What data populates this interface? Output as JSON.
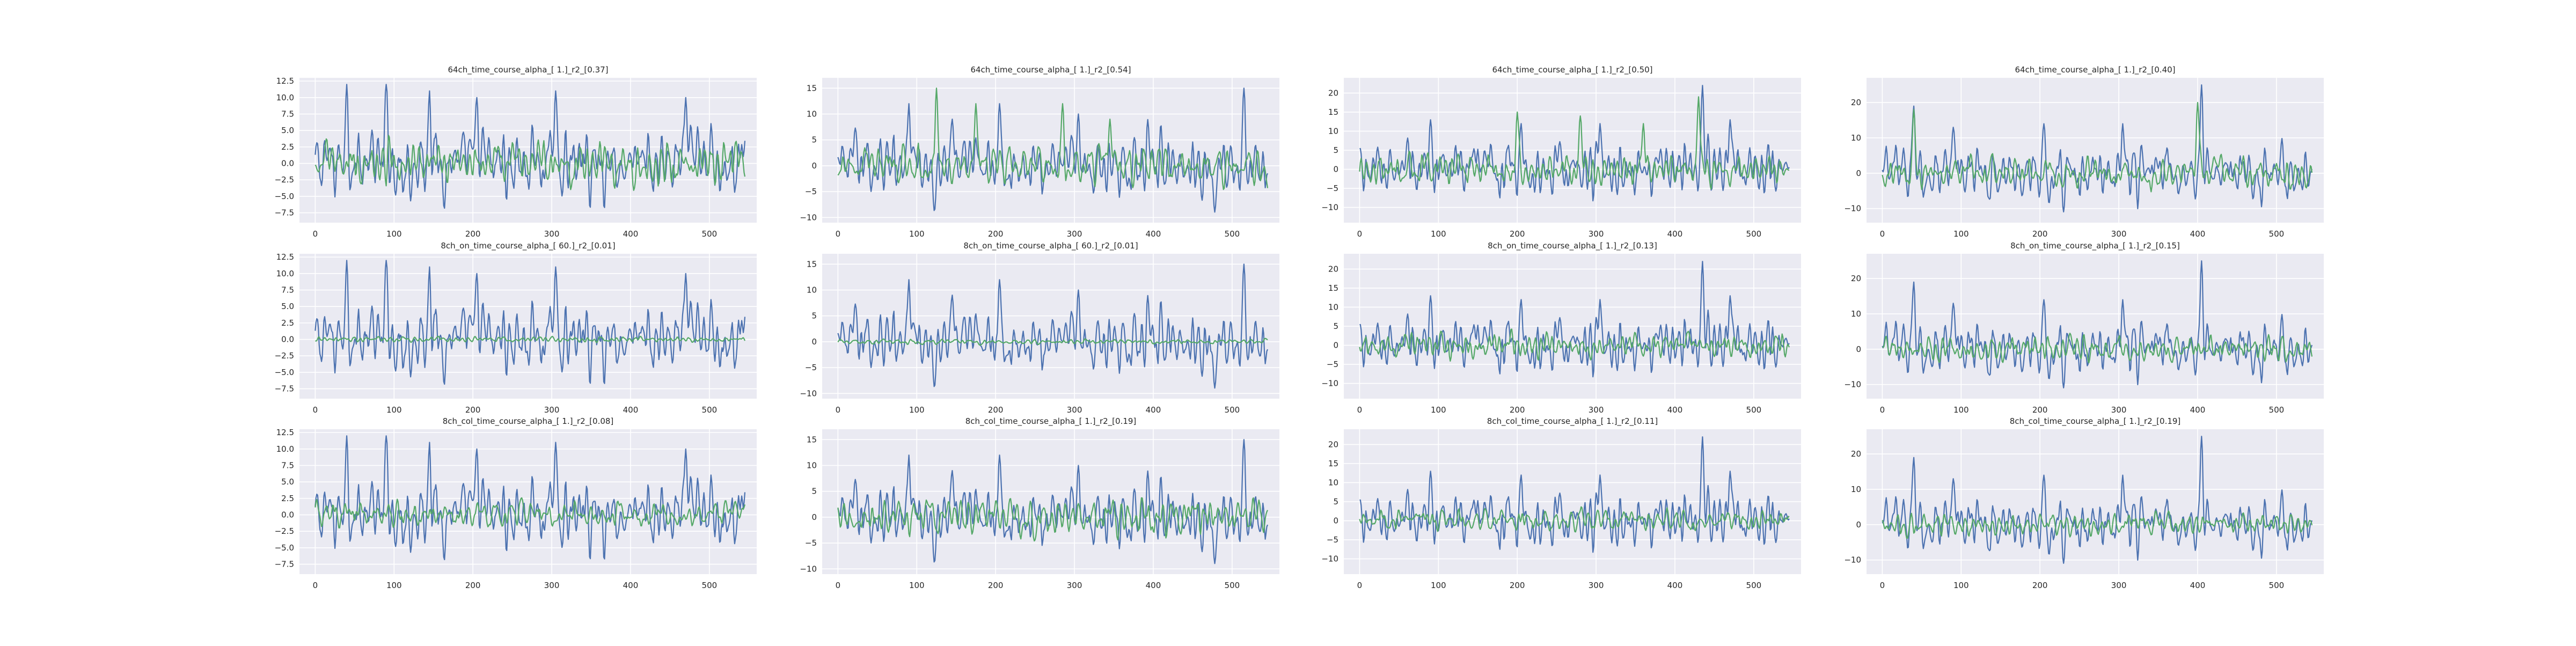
{
  "figure": {
    "colors": {
      "background": "#eaeaf2",
      "grid": "#ffffff",
      "series_blue": "#4c72b0",
      "series_green": "#55a868",
      "text": "#262626"
    }
  },
  "chart_data": [
    {
      "type": "line",
      "title": "64ch_time_course_alpha_[ 1.]_r2_[0.37]",
      "xlim": [
        -20,
        560
      ],
      "ylim": [
        -9,
        13
      ],
      "xticks": [
        0,
        100,
        200,
        300,
        400,
        500
      ],
      "yticks": [
        -7.5,
        -5.0,
        -2.5,
        0.0,
        2.5,
        5.0,
        7.5,
        10.0,
        12.5
      ],
      "ytick_labels": [
        "−7.5",
        "−5.0",
        "−2.5",
        "0.0",
        "2.5",
        "5.0",
        "7.5",
        "10.0",
        "12.5"
      ],
      "series": [
        {
          "color": "#4c72b0",
          "amplitude": 4.5,
          "peaks": [
            [
              40,
              12
            ],
            [
              90,
              12
            ],
            [
              145,
              11
            ],
            [
              205,
              10
            ],
            [
              305,
              11
            ],
            [
              470,
              10
            ]
          ]
        },
        {
          "color": "#55a868",
          "amplitude": 2.8,
          "peaks": []
        }
      ]
    },
    {
      "type": "line",
      "title": "64ch_time_course_alpha_[ 1.]_r2_[0.54]",
      "xlim": [
        -20,
        560
      ],
      "ylim": [
        -11,
        17
      ],
      "xticks": [
        0,
        100,
        200,
        300,
        400,
        500
      ],
      "yticks": [
        -10,
        -5,
        0,
        5,
        10,
        15
      ],
      "ytick_labels": [
        "−10",
        "−5",
        "0",
        "5",
        "10",
        "15"
      ],
      "series": [
        {
          "color": "#4c72b0",
          "amplitude": 5.0,
          "peaks": [
            [
              90,
              12
            ],
            [
              145,
              9
            ],
            [
              205,
              12
            ],
            [
              305,
              10
            ],
            [
              515,
              15
            ]
          ]
        },
        {
          "color": "#55a868",
          "amplitude": 3.2,
          "peaks": [
            [
              125,
              15
            ],
            [
              175,
              12
            ],
            [
              285,
              12
            ],
            [
              345,
              9
            ]
          ]
        }
      ]
    },
    {
      "type": "line",
      "title": "64ch_time_course_alpha_[ 1.]_r2_[0.50]",
      "xlim": [
        -20,
        560
      ],
      "ylim": [
        -14,
        24
      ],
      "xticks": [
        0,
        100,
        200,
        300,
        400,
        500
      ],
      "yticks": [
        -10,
        -5,
        0,
        5,
        10,
        15,
        20
      ],
      "ytick_labels": [
        "−10",
        "−5",
        "0",
        "5",
        "10",
        "15",
        "20"
      ],
      "series": [
        {
          "color": "#4c72b0",
          "amplitude": 6.0,
          "peaks": [
            [
              90,
              13
            ],
            [
              205,
              12
            ],
            [
              305,
              12
            ],
            [
              435,
              22
            ],
            [
              470,
              13
            ]
          ]
        },
        {
          "color": "#55a868",
          "amplitude": 3.5,
          "peaks": [
            [
              200,
              15
            ],
            [
              280,
              14
            ],
            [
              360,
              12
            ],
            [
              430,
              19
            ]
          ]
        }
      ]
    },
    {
      "type": "line",
      "title": "64ch_time_course_alpha_[ 1.]_r2_[0.40]",
      "xlim": [
        -20,
        560
      ],
      "ylim": [
        -14,
        27
      ],
      "xticks": [
        0,
        100,
        200,
        300,
        400,
        500
      ],
      "yticks": [
        -10,
        0,
        10,
        20
      ],
      "ytick_labels": [
        "−10",
        "0",
        "10",
        "20"
      ],
      "series": [
        {
          "color": "#4c72b0",
          "amplitude": 6.5,
          "peaks": [
            [
              40,
              19
            ],
            [
              90,
              13
            ],
            [
              205,
              14
            ],
            [
              305,
              14
            ],
            [
              405,
              25
            ]
          ]
        },
        {
          "color": "#55a868",
          "amplitude": 4.0,
          "peaks": [
            [
              40,
              18
            ],
            [
              400,
              20
            ]
          ]
        }
      ]
    },
    {
      "type": "line",
      "title": "8ch_on_time_course_alpha_[ 60.]_r2_[0.01]",
      "xlim": [
        -20,
        560
      ],
      "ylim": [
        -9,
        13
      ],
      "xticks": [
        0,
        100,
        200,
        300,
        400,
        500
      ],
      "yticks": [
        -7.5,
        -5.0,
        -2.5,
        0.0,
        2.5,
        5.0,
        7.5,
        10.0,
        12.5
      ],
      "ytick_labels": [
        "−7.5",
        "−5.0",
        "−2.5",
        "0.0",
        "2.5",
        "5.0",
        "7.5",
        "10.0",
        "12.5"
      ],
      "series": [
        {
          "color": "#4c72b0",
          "amplitude": 4.5,
          "peaks": [
            [
              40,
              12
            ],
            [
              90,
              12
            ],
            [
              145,
              11
            ],
            [
              205,
              10
            ],
            [
              305,
              11
            ],
            [
              470,
              10
            ]
          ]
        },
        {
          "color": "#55a868",
          "amplitude": 0.35,
          "peaks": []
        }
      ]
    },
    {
      "type": "line",
      "title": "8ch_on_time_course_alpha_[ 60.]_r2_[0.01]",
      "xlim": [
        -20,
        560
      ],
      "ylim": [
        -11,
        17
      ],
      "xticks": [
        0,
        100,
        200,
        300,
        400,
        500
      ],
      "yticks": [
        -10,
        -5,
        0,
        5,
        10,
        15
      ],
      "ytick_labels": [
        "−10",
        "−5",
        "0",
        "5",
        "10",
        "15"
      ],
      "series": [
        {
          "color": "#4c72b0",
          "amplitude": 5.0,
          "peaks": [
            [
              90,
              12
            ],
            [
              145,
              9
            ],
            [
              205,
              12
            ],
            [
              305,
              10
            ],
            [
              515,
              15
            ]
          ]
        },
        {
          "color": "#55a868",
          "amplitude": 0.4,
          "peaks": []
        }
      ]
    },
    {
      "type": "line",
      "title": "8ch_on_time_course_alpha_[ 1.]_r2_[0.13]",
      "xlim": [
        -20,
        560
      ],
      "ylim": [
        -14,
        24
      ],
      "xticks": [
        0,
        100,
        200,
        300,
        400,
        500
      ],
      "yticks": [
        -10,
        -5,
        0,
        5,
        10,
        15,
        20
      ],
      "ytick_labels": [
        "−10",
        "−5",
        "0",
        "5",
        "10",
        "15",
        "20"
      ],
      "series": [
        {
          "color": "#4c72b0",
          "amplitude": 6.0,
          "peaks": [
            [
              90,
              13
            ],
            [
              205,
              12
            ],
            [
              305,
              12
            ],
            [
              435,
              22
            ],
            [
              470,
              13
            ]
          ]
        },
        {
          "color": "#55a868",
          "amplitude": 2.8,
          "peaks": []
        }
      ]
    },
    {
      "type": "line",
      "title": "8ch_on_time_course_alpha_[ 1.]_r2_[0.15]",
      "xlim": [
        -20,
        560
      ],
      "ylim": [
        -14,
        27
      ],
      "xticks": [
        0,
        100,
        200,
        300,
        400,
        500
      ],
      "yticks": [
        -10,
        0,
        10,
        20
      ],
      "ytick_labels": [
        "−10",
        "0",
        "10",
        "20"
      ],
      "series": [
        {
          "color": "#4c72b0",
          "amplitude": 6.5,
          "peaks": [
            [
              40,
              19
            ],
            [
              90,
              13
            ],
            [
              205,
              14
            ],
            [
              305,
              14
            ],
            [
              405,
              25
            ]
          ]
        },
        {
          "color": "#55a868",
          "amplitude": 3.0,
          "peaks": []
        }
      ]
    },
    {
      "type": "line",
      "title": "8ch_col_time_course_alpha_[ 1.]_r2_[0.08]",
      "xlim": [
        -20,
        560
      ],
      "ylim": [
        -9,
        13
      ],
      "xticks": [
        0,
        100,
        200,
        300,
        400,
        500
      ],
      "yticks": [
        -7.5,
        -5.0,
        -2.5,
        0.0,
        2.5,
        5.0,
        7.5,
        10.0,
        12.5
      ],
      "ytick_labels": [
        "−7.5",
        "−5.0",
        "−2.5",
        "0.0",
        "2.5",
        "5.0",
        "7.5",
        "10.0",
        "12.5"
      ],
      "series": [
        {
          "color": "#4c72b0",
          "amplitude": 4.5,
          "peaks": [
            [
              40,
              12
            ],
            [
              90,
              12
            ],
            [
              145,
              11
            ],
            [
              205,
              10
            ],
            [
              305,
              11
            ],
            [
              470,
              10
            ]
          ]
        },
        {
          "color": "#55a868",
          "amplitude": 1.8,
          "peaks": []
        }
      ]
    },
    {
      "type": "line",
      "title": "8ch_col_time_course_alpha_[ 1.]_r2_[0.19]",
      "xlim": [
        -20,
        560
      ],
      "ylim": [
        -11,
        17
      ],
      "xticks": [
        0,
        100,
        200,
        300,
        400,
        500
      ],
      "yticks": [
        -10,
        -5,
        0,
        5,
        10,
        15
      ],
      "ytick_labels": [
        "−10",
        "−5",
        "0",
        "5",
        "10",
        "15"
      ],
      "series": [
        {
          "color": "#4c72b0",
          "amplitude": 5.0,
          "peaks": [
            [
              90,
              12
            ],
            [
              145,
              9
            ],
            [
              205,
              12
            ],
            [
              305,
              10
            ],
            [
              515,
              15
            ]
          ]
        },
        {
          "color": "#55a868",
          "amplitude": 3.0,
          "peaks": []
        }
      ]
    },
    {
      "type": "line",
      "title": "8ch_col_time_course_alpha_[ 1.]_r2_[0.11]",
      "xlim": [
        -20,
        560
      ],
      "ylim": [
        -14,
        24
      ],
      "xticks": [
        0,
        100,
        200,
        300,
        400,
        500
      ],
      "yticks": [
        -10,
        -5,
        0,
        5,
        10,
        15,
        20
      ],
      "ytick_labels": [
        "−10",
        "−5",
        "0",
        "5",
        "10",
        "15",
        "20"
      ],
      "series": [
        {
          "color": "#4c72b0",
          "amplitude": 6.0,
          "peaks": [
            [
              90,
              13
            ],
            [
              205,
              12
            ],
            [
              305,
              12
            ],
            [
              435,
              22
            ],
            [
              470,
              13
            ]
          ]
        },
        {
          "color": "#55a868",
          "amplitude": 2.5,
          "peaks": []
        }
      ]
    },
    {
      "type": "line",
      "title": "8ch_col_time_course_alpha_[ 1.]_r2_[0.19]",
      "xlim": [
        -20,
        560
      ],
      "ylim": [
        -14,
        27
      ],
      "xticks": [
        0,
        100,
        200,
        300,
        400,
        500
      ],
      "yticks": [
        -10,
        0,
        10,
        20
      ],
      "ytick_labels": [
        "−10",
        "0",
        "10",
        "20"
      ],
      "series": [
        {
          "color": "#4c72b0",
          "amplitude": 6.5,
          "peaks": [
            [
              40,
              19
            ],
            [
              90,
              13
            ],
            [
              205,
              14
            ],
            [
              305,
              14
            ],
            [
              405,
              25
            ]
          ]
        },
        {
          "color": "#55a868",
          "amplitude": 2.8,
          "peaks": []
        }
      ]
    }
  ]
}
